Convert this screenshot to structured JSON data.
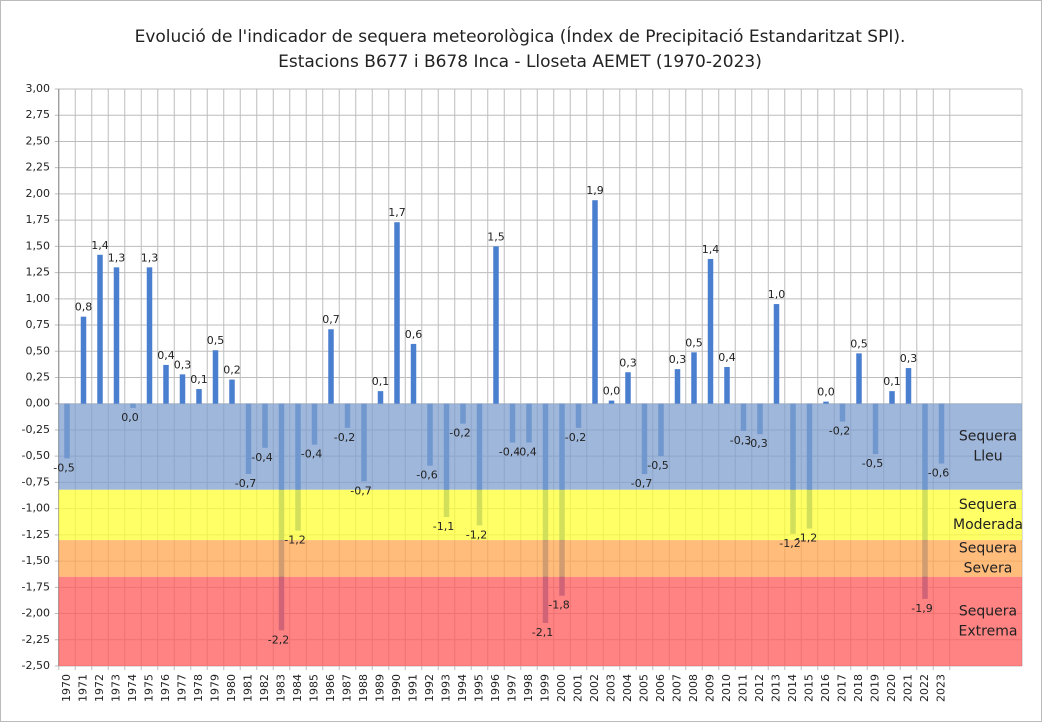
{
  "chart_data": {
    "type": "bar",
    "title": [
      "Evolució de l'indicador de sequera meteorològica (Índex de Precipitació Estandaritzat SPI).",
      "Estacions B677 i B678 Inca - Lloseta AEMET (1970-2023)"
    ],
    "categories": [
      "1970",
      "1971",
      "1972",
      "1973",
      "1974",
      "1975",
      "1976",
      "1977",
      "1978",
      "1979",
      "1980",
      "1981",
      "1982",
      "1983",
      "1984",
      "1985",
      "1986",
      "1987",
      "1988",
      "1989",
      "1990",
      "1991",
      "1992",
      "1993",
      "1994",
      "1995",
      "1996",
      "1997",
      "1998",
      "1999",
      "2000",
      "2001",
      "2002",
      "2003",
      "2004",
      "2005",
      "2006",
      "2007",
      "2008",
      "2009",
      "2010",
      "2011",
      "2012",
      "2013",
      "2014",
      "2015",
      "2016",
      "2017",
      "2018",
      "2019",
      "2020",
      "2021",
      "2022",
      "2023"
    ],
    "values": [
      -0.52,
      0.83,
      1.42,
      1.3,
      -0.04,
      1.3,
      0.37,
      0.28,
      0.14,
      0.51,
      0.23,
      -0.67,
      -0.42,
      -2.16,
      -1.21,
      -0.39,
      0.71,
      -0.23,
      -0.74,
      0.12,
      1.73,
      0.57,
      -0.59,
      -1.08,
      -0.19,
      -1.16,
      1.5,
      -0.37,
      -0.37,
      -2.09,
      -1.83,
      -0.23,
      1.94,
      0.03,
      0.3,
      -0.67,
      -0.5,
      0.33,
      0.49,
      1.38,
      0.35,
      -0.26,
      -0.29,
      0.95,
      -1.24,
      -1.19,
      0.02,
      -0.17,
      0.48,
      -0.48,
      0.12,
      0.34,
      -1.86,
      -0.57
    ],
    "value_labels": [
      "-0,5",
      "0,8",
      "1,4",
      "1,3",
      "0,0",
      "1,3",
      "0,4",
      "0,3",
      "0,1",
      "0,5",
      "0,2",
      "-0,7",
      "-0,4",
      "-2,2",
      "-1,2",
      "-0,4",
      "0,7",
      "-0,2",
      "-0,7",
      "0,1",
      "1,7",
      "0,6",
      "-0,6",
      "-1,1",
      "-0,2",
      "-1,2",
      "1,5",
      "-0,4",
      "-0,4",
      "-2,1",
      "-1,8",
      "-0,2",
      "1,9",
      "0,0",
      "0,3",
      "-0,7",
      "-0,5",
      "0,3",
      "0,5",
      "1,4",
      "0,4",
      "-0,3",
      "-0,3",
      "1,0",
      "-1,2",
      "-1,2",
      "0,0",
      "-0,2",
      "0,5",
      "-0,5",
      "0,1",
      "0,3",
      "-1,9",
      "-0,6"
    ],
    "color": "#4a7fcf",
    "ylim": [
      -2.5,
      3.0
    ],
    "yticks": [
      {
        "value": 3.0,
        "label": "3,00"
      },
      {
        "value": 2.75,
        "label": "2,75"
      },
      {
        "value": 2.5,
        "label": "2,50"
      },
      {
        "value": 2.25,
        "label": "2,25"
      },
      {
        "value": 2.0,
        "label": "2,00"
      },
      {
        "value": 1.75,
        "label": "1,75"
      },
      {
        "value": 1.5,
        "label": "1,50"
      },
      {
        "value": 1.25,
        "label": "1,25"
      },
      {
        "value": 1.0,
        "label": "1,00"
      },
      {
        "value": 0.75,
        "label": "0,75"
      },
      {
        "value": 0.5,
        "label": "0,50"
      },
      {
        "value": 0.25,
        "label": "0,25"
      },
      {
        "value": 0.0,
        "label": "0,00"
      },
      {
        "value": -0.25,
        "label": "-0,25"
      },
      {
        "value": -0.5,
        "label": "-0,50"
      },
      {
        "value": -0.75,
        "label": "-0,75"
      },
      {
        "value": -1.0,
        "label": "-1,00"
      },
      {
        "value": -1.25,
        "label": "-1,25"
      },
      {
        "value": -1.5,
        "label": "-1,50"
      },
      {
        "value": -1.75,
        "label": "-1,75"
      },
      {
        "value": -2.0,
        "label": "-2,00"
      },
      {
        "value": -2.25,
        "label": "-2,25"
      },
      {
        "value": -2.5,
        "label": "-2,50"
      }
    ],
    "grid": true,
    "bands": [
      {
        "label": [
          "Sequera",
          "Lleu"
        ],
        "from": 0,
        "to": -0.82,
        "color": "#7f9fcf"
      },
      {
        "label": [
          "Sequera",
          "Moderada"
        ],
        "from": -0.82,
        "to": -1.3,
        "color": "#ffff33"
      },
      {
        "label": [
          "Sequera",
          "Severa"
        ],
        "from": -1.3,
        "to": -1.65,
        "color": "#ffa54f"
      },
      {
        "label": [
          "Sequera",
          "Extrema"
        ],
        "from": -1.65,
        "to": -2.5,
        "color": "#ff5a5a"
      }
    ]
  }
}
